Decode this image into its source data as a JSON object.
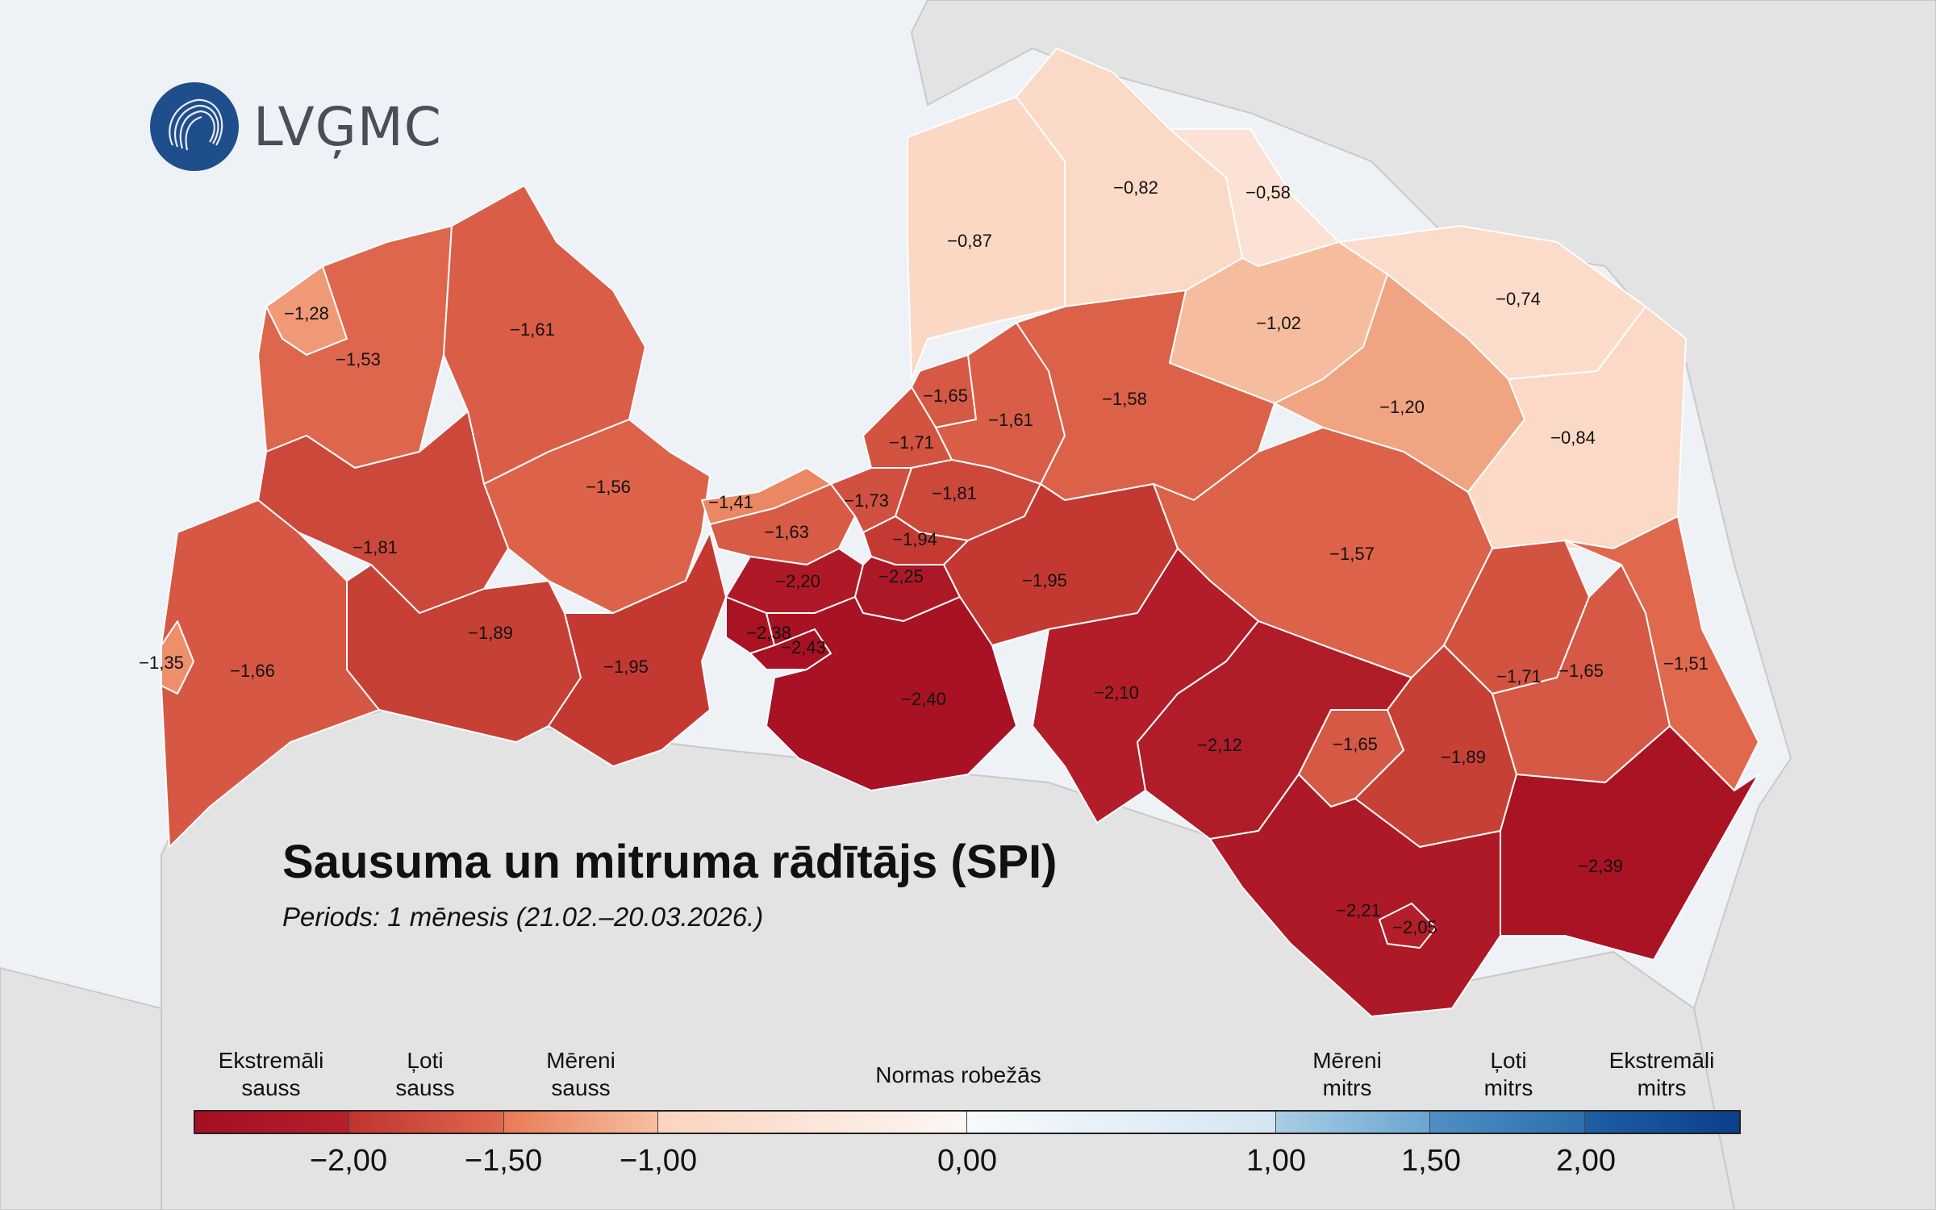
{
  "logo": {
    "text": "LVĢMC",
    "icon": "lvgmc-logo-icon"
  },
  "title": "Sausuma un mitruma rādītājs (SPI)",
  "subtitle": "Periods: 1 mēnesis (21.02.–20.03.2026.)",
  "colors": {
    "sea": "#eef2f7",
    "neighbor": "#e3e3e3",
    "border": "#ffffff"
  },
  "legend": {
    "categories": [
      {
        "line1": "Ekstremāli",
        "line2": "sauss"
      },
      {
        "line1": "Ļoti",
        "line2": "sauss"
      },
      {
        "line1": "Mēreni",
        "line2": "sauss"
      },
      {
        "line1": "Normas robežās",
        "line2": ""
      },
      {
        "line1": "Mēreni",
        "line2": "mitrs"
      },
      {
        "line1": "Ļoti",
        "line2": "mitrs"
      },
      {
        "line1": "Ekstremāli",
        "line2": "mitrs"
      }
    ],
    "ticks": [
      "−2,00",
      "−1,50",
      "−1,00",
      "0,00",
      "1,00",
      "1,50",
      "2,00"
    ],
    "segments": [
      {
        "from": -2.5,
        "to": -2.0,
        "colors": [
          "#a50f22",
          "#b5202b"
        ]
      },
      {
        "from": -2.0,
        "to": -1.5,
        "colors": [
          "#c0342f",
          "#e0694e"
        ]
      },
      {
        "from": -1.5,
        "to": -1.0,
        "colors": [
          "#e97a55",
          "#f6c0a0"
        ]
      },
      {
        "from": -1.0,
        "to": 0.0,
        "colors": [
          "#fbd3bd",
          "#fbf7f4"
        ]
      },
      {
        "from": 0.0,
        "to": 1.0,
        "colors": [
          "#f7fafc",
          "#d3e5f2"
        ]
      },
      {
        "from": 1.0,
        "to": 1.5,
        "colors": [
          "#aacde5",
          "#6aa5cf"
        ]
      },
      {
        "from": 1.5,
        "to": 2.0,
        "colors": [
          "#4f8fc2",
          "#2d6fae"
        ]
      },
      {
        "from": 2.0,
        "to": 2.5,
        "colors": [
          "#1f5ea5",
          "#0b3f8a"
        ]
      }
    ]
  },
  "map_values": [
    {
      "id": "r01",
      "value": "−0,87",
      "spi": -0.87
    },
    {
      "id": "r02",
      "value": "−0,82",
      "spi": -0.82
    },
    {
      "id": "r03",
      "value": "−0,58",
      "spi": -0.58
    },
    {
      "id": "r04",
      "value": "−1,02",
      "spi": -1.02
    },
    {
      "id": "r05",
      "value": "−0,74",
      "spi": -0.74
    },
    {
      "id": "r06",
      "value": "−1,20",
      "spi": -1.2
    },
    {
      "id": "r07",
      "value": "−0,84",
      "spi": -0.84
    },
    {
      "id": "r08",
      "value": "−1,28",
      "spi": -1.28
    },
    {
      "id": "r09",
      "value": "−1,53",
      "spi": -1.53
    },
    {
      "id": "r10",
      "value": "−1,61",
      "spi": -1.61
    },
    {
      "id": "r11",
      "value": "−1,65",
      "spi": -1.65
    },
    {
      "id": "r12",
      "value": "−1,61",
      "spi": -1.61
    },
    {
      "id": "r13",
      "value": "−1,58",
      "spi": -1.58
    },
    {
      "id": "r14",
      "value": "−1,71",
      "spi": -1.71
    },
    {
      "id": "r15",
      "value": "−1,56",
      "spi": -1.56
    },
    {
      "id": "r16",
      "value": "−1,41",
      "spi": -1.41
    },
    {
      "id": "r17",
      "value": "−1,73",
      "spi": -1.73
    },
    {
      "id": "r18",
      "value": "−1,81",
      "spi": -1.81
    },
    {
      "id": "r19",
      "value": "−1,81",
      "spi": -1.81
    },
    {
      "id": "r20",
      "value": "−1,63",
      "spi": -1.63
    },
    {
      "id": "r21",
      "value": "−1,94",
      "spi": -1.94
    },
    {
      "id": "r22",
      "value": "−1,57",
      "spi": -1.57
    },
    {
      "id": "r23",
      "value": "−2,20",
      "spi": -2.2
    },
    {
      "id": "r24",
      "value": "−2,25",
      "spi": -2.25
    },
    {
      "id": "r25",
      "value": "−1,95",
      "spi": -1.95
    },
    {
      "id": "r26",
      "value": "−1,89",
      "spi": -1.89
    },
    {
      "id": "r27",
      "value": "−1,35",
      "spi": -1.35
    },
    {
      "id": "r28",
      "value": "−1,66",
      "spi": -1.66
    },
    {
      "id": "r29",
      "value": "−2,38",
      "spi": -2.38
    },
    {
      "id": "r30",
      "value": "−2,43",
      "spi": -2.43
    },
    {
      "id": "r31",
      "value": "−1,95",
      "spi": -1.95
    },
    {
      "id": "r32",
      "value": "−2,10",
      "spi": -2.1
    },
    {
      "id": "r33",
      "value": "−1,71",
      "spi": -1.71
    },
    {
      "id": "r34",
      "value": "−1,65",
      "spi": -1.65
    },
    {
      "id": "r35",
      "value": "−1,51",
      "spi": -1.51
    },
    {
      "id": "r36",
      "value": "−2,40",
      "spi": -2.4
    },
    {
      "id": "r37",
      "value": "−2,12",
      "spi": -2.12
    },
    {
      "id": "r38",
      "value": "−1,65",
      "spi": -1.65
    },
    {
      "id": "r39",
      "value": "−1,89",
      "spi": -1.89
    },
    {
      "id": "r40",
      "value": "−2,39",
      "spi": -2.39
    },
    {
      "id": "r41",
      "value": "−2,21",
      "spi": -2.21
    },
    {
      "id": "r42",
      "value": "−2,05",
      "spi": -2.05
    }
  ]
}
